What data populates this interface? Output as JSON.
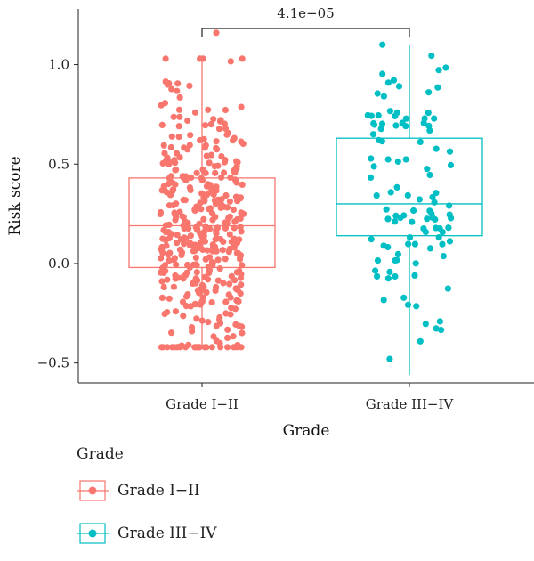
{
  "chart_data": {
    "type": "boxplot",
    "xlabel": "Grade",
    "ylabel": "Risk score",
    "ylim": [
      -0.6,
      1.28
    ],
    "yticks": [
      -0.5,
      0.0,
      0.5,
      1.0
    ],
    "ytick_labels": [
      "−0.5",
      "0.0",
      "0.5",
      "1.0"
    ],
    "categories": [
      "Grade I−II",
      "Grade III−IV"
    ],
    "series": [
      {
        "name": "Grade I−II",
        "color": "#F8766D",
        "box": {
          "q1": -0.02,
          "median": 0.19,
          "q3": 0.43,
          "whisker_low": -0.42,
          "whisker_high": 1.03
        },
        "points_count": 420,
        "outliers": [
          1.16
        ]
      },
      {
        "name": "Grade III−IV",
        "color": "#00BFC4",
        "box": {
          "q1": 0.14,
          "median": 0.3,
          "q3": 0.63,
          "whisker_low": -0.56,
          "whisker_high": 1.1
        },
        "points_count": 110,
        "outliers": []
      }
    ],
    "annotation": {
      "text": "4.1e−05",
      "between": [
        "Grade I−II",
        "Grade III−IV"
      ]
    },
    "legend": {
      "title": "Grade",
      "position": "bottom-left",
      "entries": [
        "Grade I−II",
        "Grade III−IV"
      ]
    },
    "grid": false
  }
}
